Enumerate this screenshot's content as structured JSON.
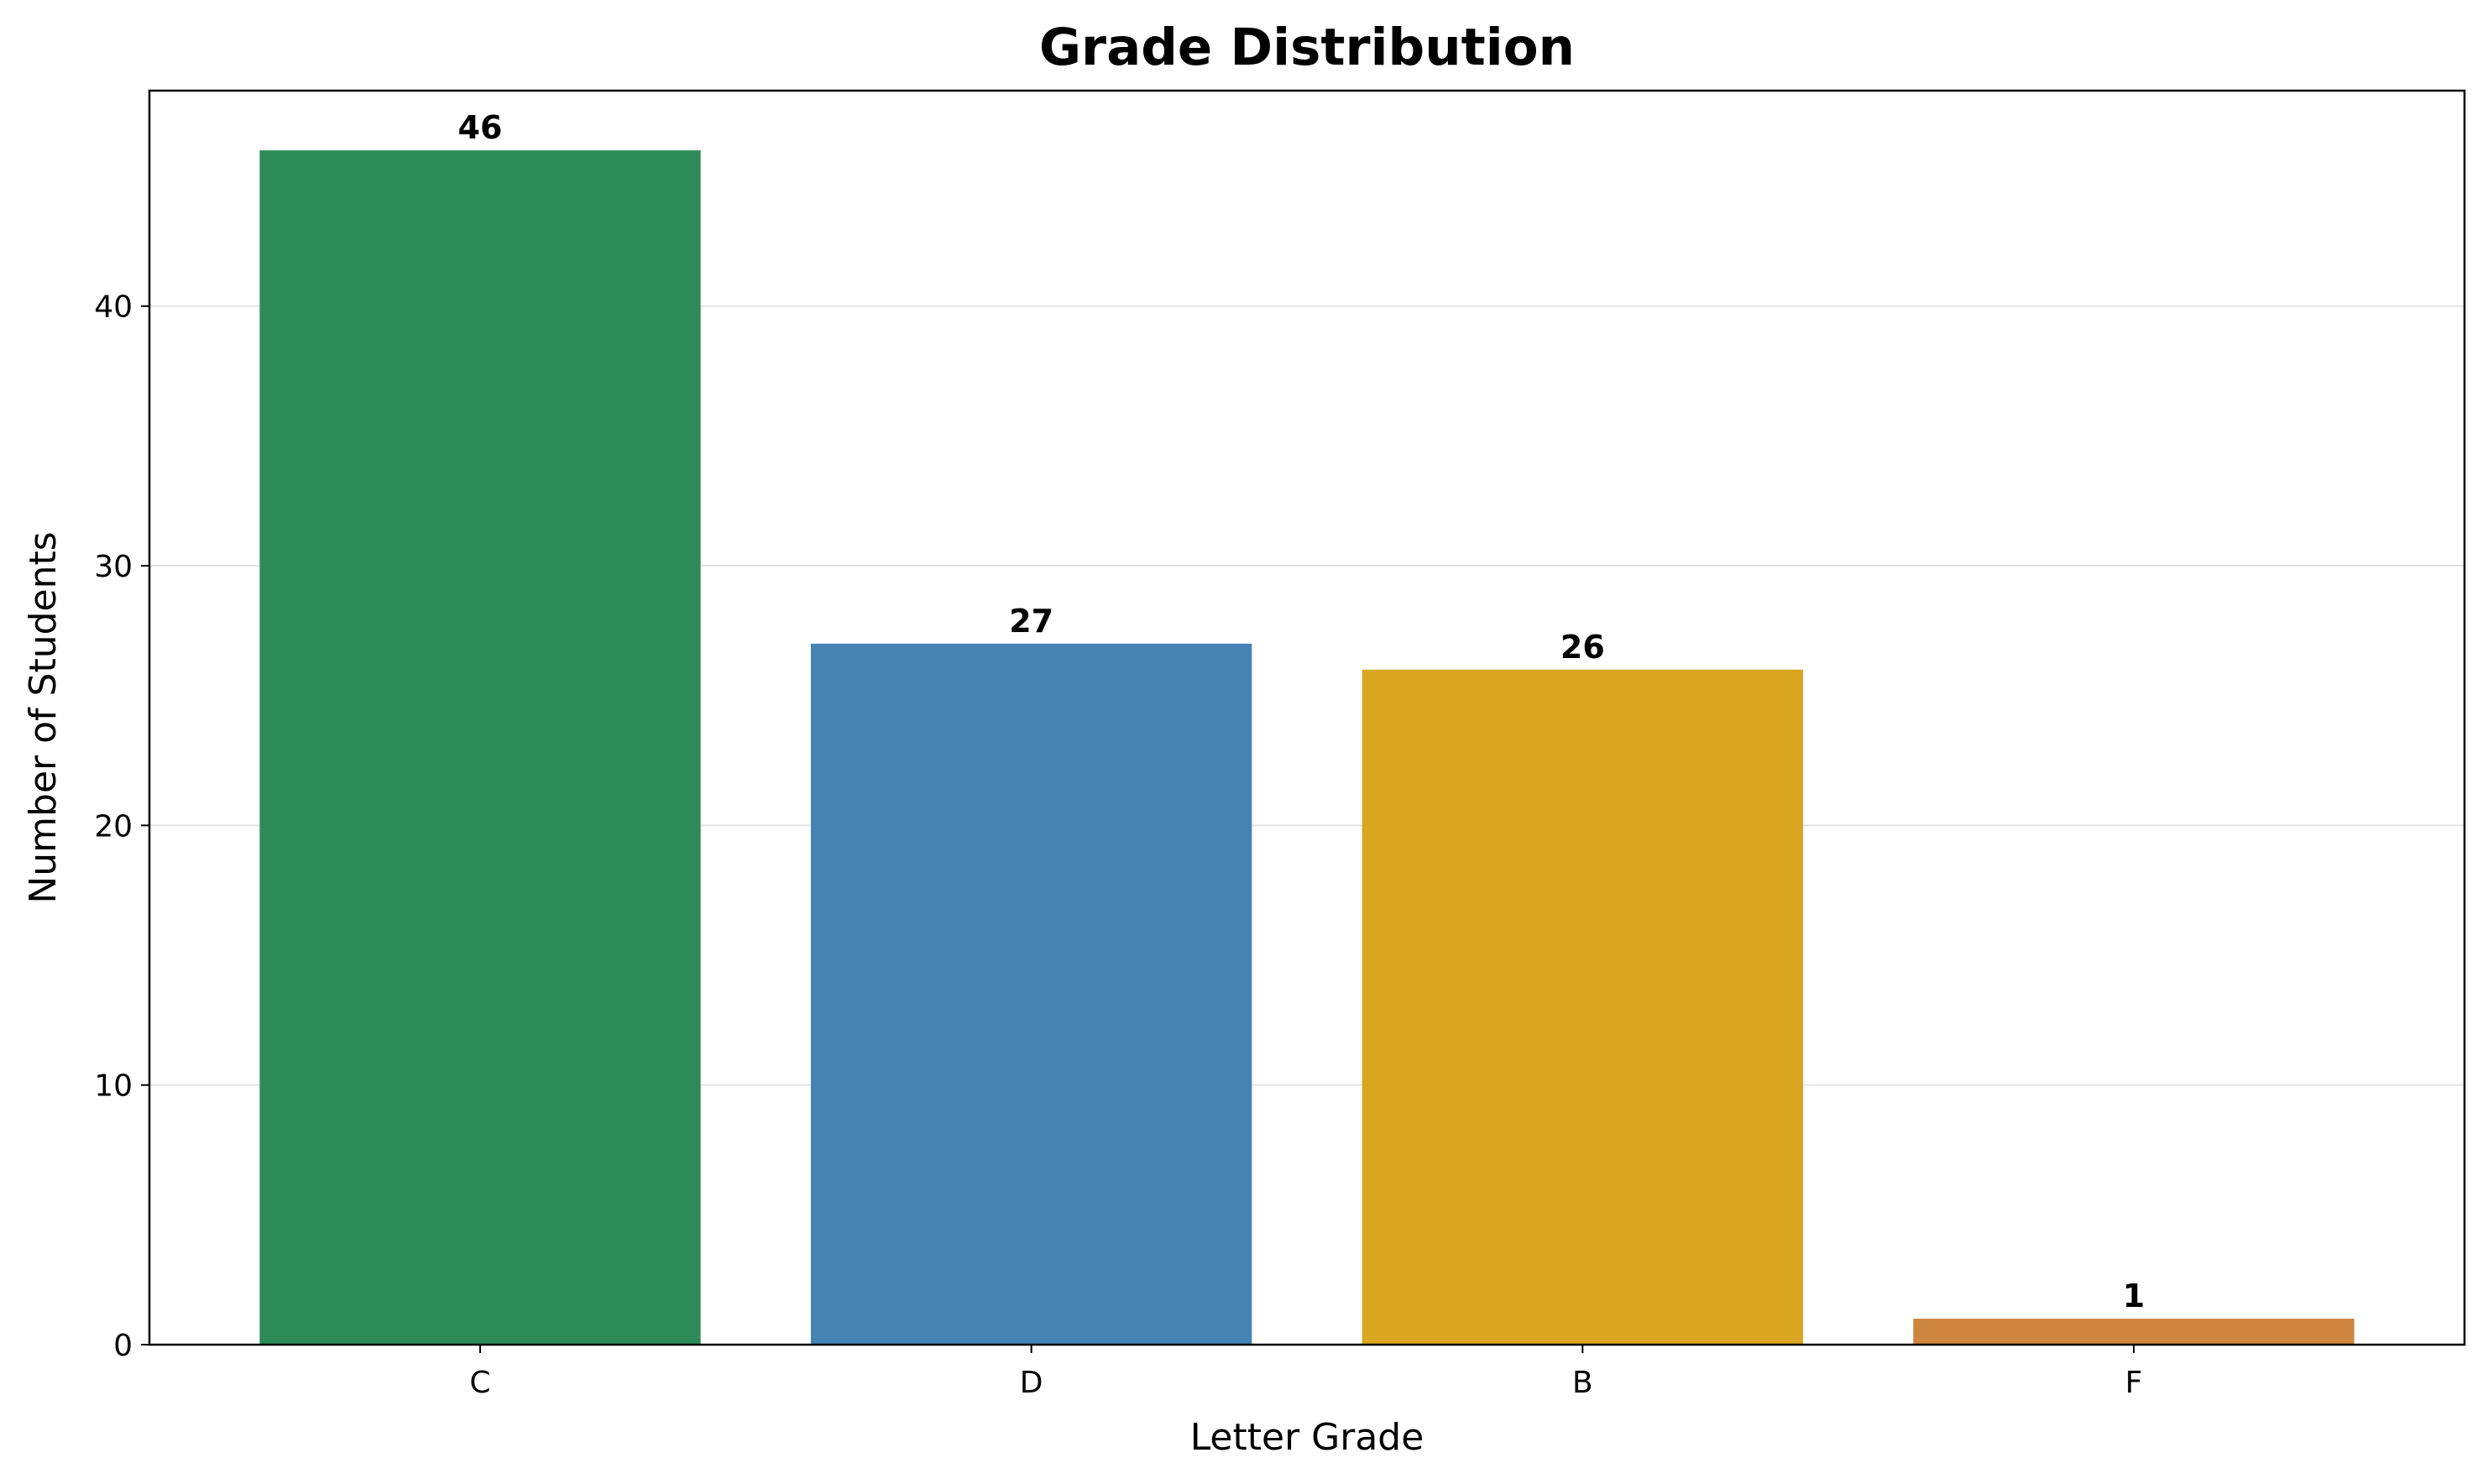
{
  "chart_data": {
    "type": "bar",
    "title": "Grade Distribution",
    "xlabel": "Letter Grade",
    "ylabel": "Number of Students",
    "categories": [
      "C",
      "D",
      "B",
      "F"
    ],
    "values": [
      46,
      27,
      26,
      1
    ],
    "value_labels": [
      "46",
      "27",
      "26",
      "1"
    ],
    "colors": [
      "#2e8b57",
      "#4682b4",
      "#daa520",
      "#cd853f"
    ],
    "ylim": [
      0,
      48.3
    ],
    "yticks": [
      0,
      10,
      20,
      30,
      40
    ],
    "ytick_labels": [
      "0",
      "10",
      "20",
      "30",
      "40"
    ],
    "grid": "y-axis",
    "legend": "none"
  }
}
